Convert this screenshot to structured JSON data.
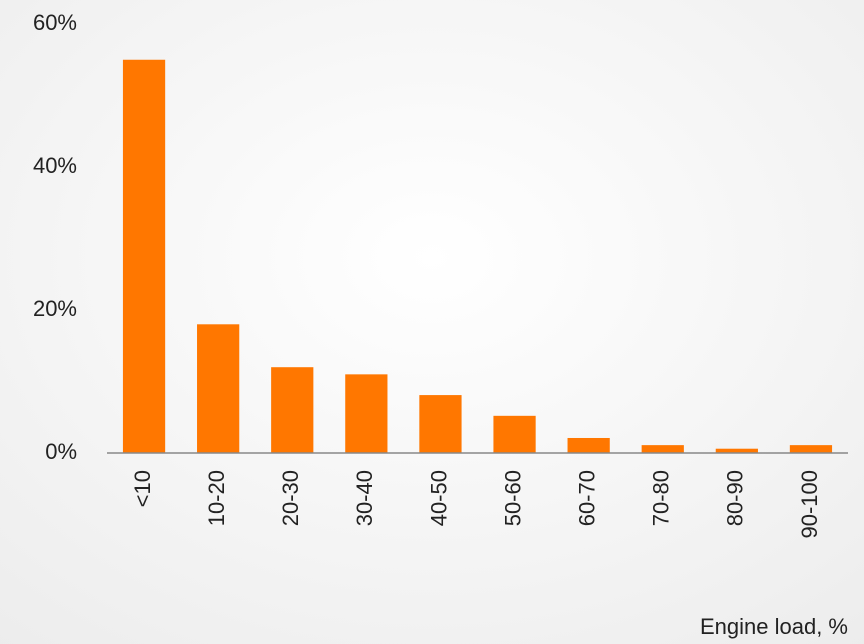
{
  "chart_data": {
    "type": "bar",
    "x_label": "Engine load, %",
    "categories": [
      "<10",
      "10-20",
      "20-30",
      "30-40",
      "40-50",
      "50-60",
      "60-70",
      "70-80",
      "80-90",
      "90-100"
    ],
    "values": [
      55,
      18,
      12,
      11,
      8.1,
      5.2,
      2.1,
      1.1,
      0.6,
      1.1
    ],
    "color": "#ff7700",
    "ylim": [
      0,
      60
    ],
    "yticks": [
      {
        "value": 0,
        "label": "0%"
      },
      {
        "value": 20,
        "label": "20%"
      },
      {
        "value": 40,
        "label": "40%"
      },
      {
        "value": 60,
        "label": "60%"
      }
    ],
    "grid": false
  }
}
